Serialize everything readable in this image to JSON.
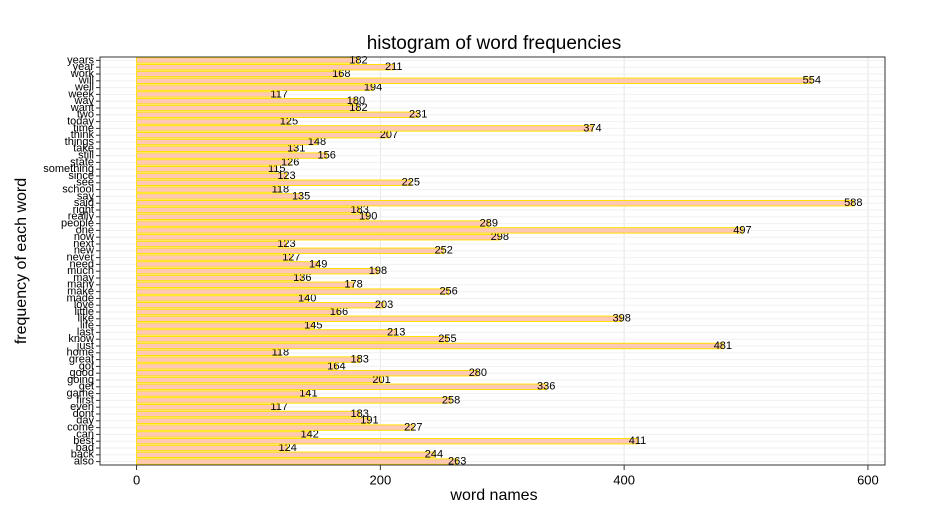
{
  "chart_data": {
    "type": "barh",
    "title": "histogram of word frequencies",
    "x_label": "word names",
    "y_label": "frequency of each word",
    "categories": [
      "also",
      "back",
      "bad",
      "best",
      "can",
      "come",
      "day",
      "dont",
      "even",
      "first",
      "game",
      "get",
      "going",
      "good",
      "got",
      "great",
      "home",
      "just",
      "know",
      "last",
      "life",
      "like",
      "little",
      "love",
      "made",
      "make",
      "many",
      "may",
      "much",
      "need",
      "never",
      "new",
      "next",
      "now",
      "one",
      "people",
      "really",
      "right",
      "said",
      "say",
      "school",
      "see",
      "since",
      "something",
      "state",
      "still",
      "take",
      "things",
      "think",
      "time",
      "today",
      "two",
      "want",
      "way",
      "week",
      "well",
      "will",
      "work",
      "year",
      "years"
    ],
    "values": [
      263,
      244,
      124,
      411,
      142,
      227,
      191,
      183,
      117,
      258,
      141,
      336,
      201,
      280,
      164,
      183,
      118,
      481,
      255,
      213,
      145,
      398,
      166,
      203,
      140,
      256,
      178,
      136,
      198,
      149,
      127,
      252,
      123,
      298,
      497,
      289,
      190,
      183,
      588,
      135,
      118,
      225,
      123,
      115,
      126,
      156,
      131,
      148,
      207,
      374,
      125,
      231,
      182,
      180,
      117,
      194,
      554,
      168,
      211,
      182
    ],
    "color": "#ffc8b4",
    "edge_color": "#ffe000",
    "xlim": [
      -30,
      614
    ],
    "xticks": [
      0,
      200,
      400,
      600
    ],
    "grid": true
  }
}
